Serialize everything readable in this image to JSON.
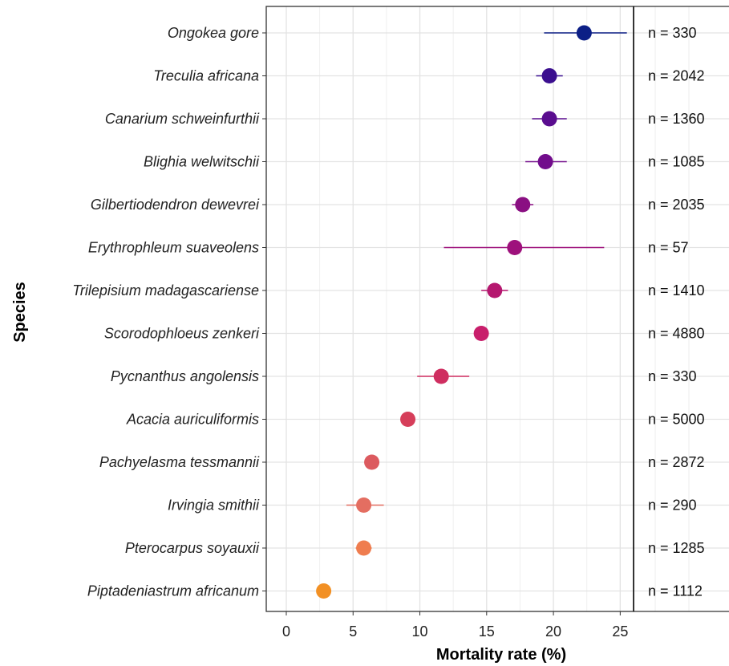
{
  "chart_data": {
    "type": "scatter",
    "xlabel": "Mortality rate (%)",
    "ylabel": "Species",
    "xlim": [
      -1.5,
      26
    ],
    "xticks": [
      0,
      5,
      10,
      15,
      20,
      25
    ],
    "grid": true,
    "palette": [
      "#0c1f86",
      "#3b0f8f",
      "#5a0d8f",
      "#720c8c",
      "#8a0f82",
      "#9e117c",
      "#b5176f",
      "#c81e6b",
      "#cf2e60",
      "#d63e5a",
      "#dc5a5f",
      "#e46e61",
      "#ef7d4f",
      "#f29024"
    ],
    "species": [
      {
        "name": "Ongokea gore",
        "value": 22.3,
        "low": 19.3,
        "high": 25.5,
        "n_label": "n = 330"
      },
      {
        "name": "Treculia africana",
        "value": 19.7,
        "low": 18.7,
        "high": 20.7,
        "n_label": "n = 2042"
      },
      {
        "name": "Canarium schweinfurthii",
        "value": 19.7,
        "low": 18.4,
        "high": 21.0,
        "n_label": "n = 1360"
      },
      {
        "name": "Blighia welwitschii",
        "value": 19.4,
        "low": 17.9,
        "high": 21.0,
        "n_label": "n = 1085"
      },
      {
        "name": "Gilbertiodendron dewevrei",
        "value": 17.7,
        "low": 16.9,
        "high": 18.5,
        "n_label": "n = 2035"
      },
      {
        "name": "Erythrophleum suaveolens",
        "value": 17.1,
        "low": 11.8,
        "high": 23.8,
        "n_label": "n = 57"
      },
      {
        "name": "Trilepisium madagascariense",
        "value": 15.6,
        "low": 14.6,
        "high": 16.6,
        "n_label": "n = 1410"
      },
      {
        "name": "Scorodophloeus zenkeri",
        "value": 14.6,
        "low": 14.1,
        "high": 15.1,
        "n_label": "n = 4880"
      },
      {
        "name": "Pycnanthus angolensis",
        "value": 11.6,
        "low": 9.8,
        "high": 13.7,
        "n_label": "n = 330"
      },
      {
        "name": "Acacia auriculiformis",
        "value": 9.1,
        "low": 8.8,
        "high": 9.4,
        "n_label": "n = 5000"
      },
      {
        "name": "Pachyelasma tessmannii",
        "value": 6.4,
        "low": 5.9,
        "high": 6.9,
        "n_label": "n = 2872"
      },
      {
        "name": "Irvingia smithii",
        "value": 5.8,
        "low": 4.5,
        "high": 7.3,
        "n_label": "n = 290"
      },
      {
        "name": "Pterocarpus soyauxii",
        "value": 5.8,
        "low": 5.2,
        "high": 6.4,
        "n_label": "n = 1285"
      },
      {
        "name": "Piptadeniastrum africanum",
        "value": 2.8,
        "low": 2.3,
        "high": 3.3,
        "n_label": "n = 1112"
      }
    ]
  }
}
